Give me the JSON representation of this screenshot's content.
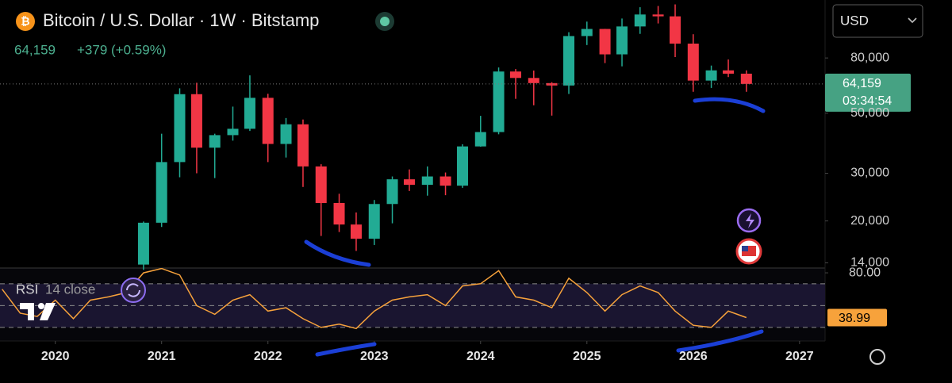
{
  "chart_data": [
    {
      "type": "candlestick",
      "title": "Bitcoin / U.S. Dollar · 1W · Bitstamp",
      "last_price": "64,159",
      "change": "+379 (+0.59%)",
      "currency": "USD",
      "countdown": "03:34:54",
      "log_scale": true,
      "up_color": "#22ab94",
      "down_color": "#f23645",
      "x": [
        2020.83,
        2021.0,
        2021.17,
        2021.33,
        2021.5,
        2021.67,
        2021.83,
        2022.0,
        2022.17,
        2022.33,
        2022.5,
        2022.67,
        2022.83,
        2023.0,
        2023.17,
        2023.33,
        2023.5,
        2023.67,
        2023.83,
        2024.0,
        2024.17,
        2024.33,
        2024.5,
        2024.67,
        2024.83,
        2025.0,
        2025.17,
        2025.33,
        2025.5,
        2025.67,
        2025.83,
        2026.0,
        2026.17,
        2026.33,
        2026.5
      ],
      "open": [
        13800,
        19700,
        33000,
        58800,
        37300,
        41500,
        43800,
        57000,
        38500,
        45500,
        31800,
        23300,
        19400,
        17200,
        23100,
        28500,
        27200,
        29200,
        27000,
        37700,
        42600,
        71300,
        67500,
        64600,
        63300,
        96400,
        102400,
        82500,
        104600,
        115800,
        114000,
        90400,
        66000,
        72000,
        70000
      ],
      "high": [
        19900,
        42000,
        61800,
        64800,
        42000,
        52900,
        69000,
        59000,
        48000,
        47400,
        32400,
        25200,
        21500,
        23900,
        29200,
        31000,
        31800,
        30200,
        38400,
        48900,
        73800,
        72800,
        71900,
        65100,
        99600,
        109000,
        102500,
        111900,
        123200,
        124500,
        126200,
        97900,
        75000,
        79000,
        72000
      ],
      "low": [
        13200,
        19000,
        29000,
        30000,
        28800,
        39600,
        43000,
        33000,
        34300,
        26700,
        17600,
        18200,
        15500,
        16300,
        19600,
        25800,
        24800,
        24900,
        26500,
        37600,
        41800,
        56500,
        53500,
        49000,
        58900,
        89300,
        76600,
        74500,
        98200,
        107300,
        80600,
        60000,
        62000,
        68000,
        60000
      ],
      "close": [
        19700,
        33000,
        58800,
        37300,
        41500,
        43800,
        57000,
        38500,
        45500,
        31800,
        23300,
        19400,
        17200,
        23100,
        28500,
        27200,
        29200,
        27000,
        37700,
        42600,
        71300,
        67500,
        64600,
        63300,
        96400,
        102400,
        82500,
        104600,
        115800,
        114000,
        90400,
        66000,
        72000,
        70000,
        64159
      ],
      "xlim": [
        2019.48,
        2027.24
      ],
      "ylim": [
        13400,
        131000
      ],
      "xticks": [
        2020,
        2021,
        2022,
        2023,
        2024,
        2025,
        2026,
        2027
      ],
      "yticks": [
        {
          "value": 14000,
          "label": "14,000"
        },
        {
          "value": 20000,
          "label": "20,000"
        },
        {
          "value": 30000,
          "label": "30,000"
        },
        {
          "value": 50000,
          "label": "50,000"
        },
        {
          "value": 80000,
          "label": "80,000"
        }
      ]
    },
    {
      "type": "line",
      "title": "RSI",
      "subtitle": "14 close",
      "color": "#f7a23b",
      "x": [
        2019.5,
        2019.67,
        2019.83,
        2020.0,
        2020.17,
        2020.33,
        2020.5,
        2020.67,
        2020.83,
        2021.0,
        2021.17,
        2021.33,
        2021.5,
        2021.67,
        2021.83,
        2022.0,
        2022.17,
        2022.33,
        2022.5,
        2022.67,
        2022.83,
        2023.0,
        2023.17,
        2023.33,
        2023.5,
        2023.67,
        2023.83,
        2024.0,
        2024.17,
        2024.33,
        2024.5,
        2024.67,
        2024.83,
        2025.0,
        2025.17,
        2025.33,
        2025.5,
        2025.67,
        2025.83,
        2026.0,
        2026.17,
        2026.33,
        2026.5
      ],
      "values": [
        65,
        43,
        40,
        55,
        38,
        55,
        58,
        62,
        80,
        84,
        78,
        50,
        42,
        55,
        60,
        45,
        48,
        38,
        30,
        33,
        29,
        45,
        55,
        58,
        60,
        50,
        68,
        70,
        82,
        58,
        55,
        48,
        75,
        62,
        45,
        60,
        68,
        62,
        45,
        32,
        30,
        45,
        38.99
      ],
      "xlim": [
        2019.48,
        2027.24
      ],
      "ylim": [
        17.6,
        84.4
      ],
      "yticks": [
        {
          "value": 80,
          "label": "80.00"
        }
      ],
      "levels": [
        70,
        50,
        30
      ]
    }
  ]
}
